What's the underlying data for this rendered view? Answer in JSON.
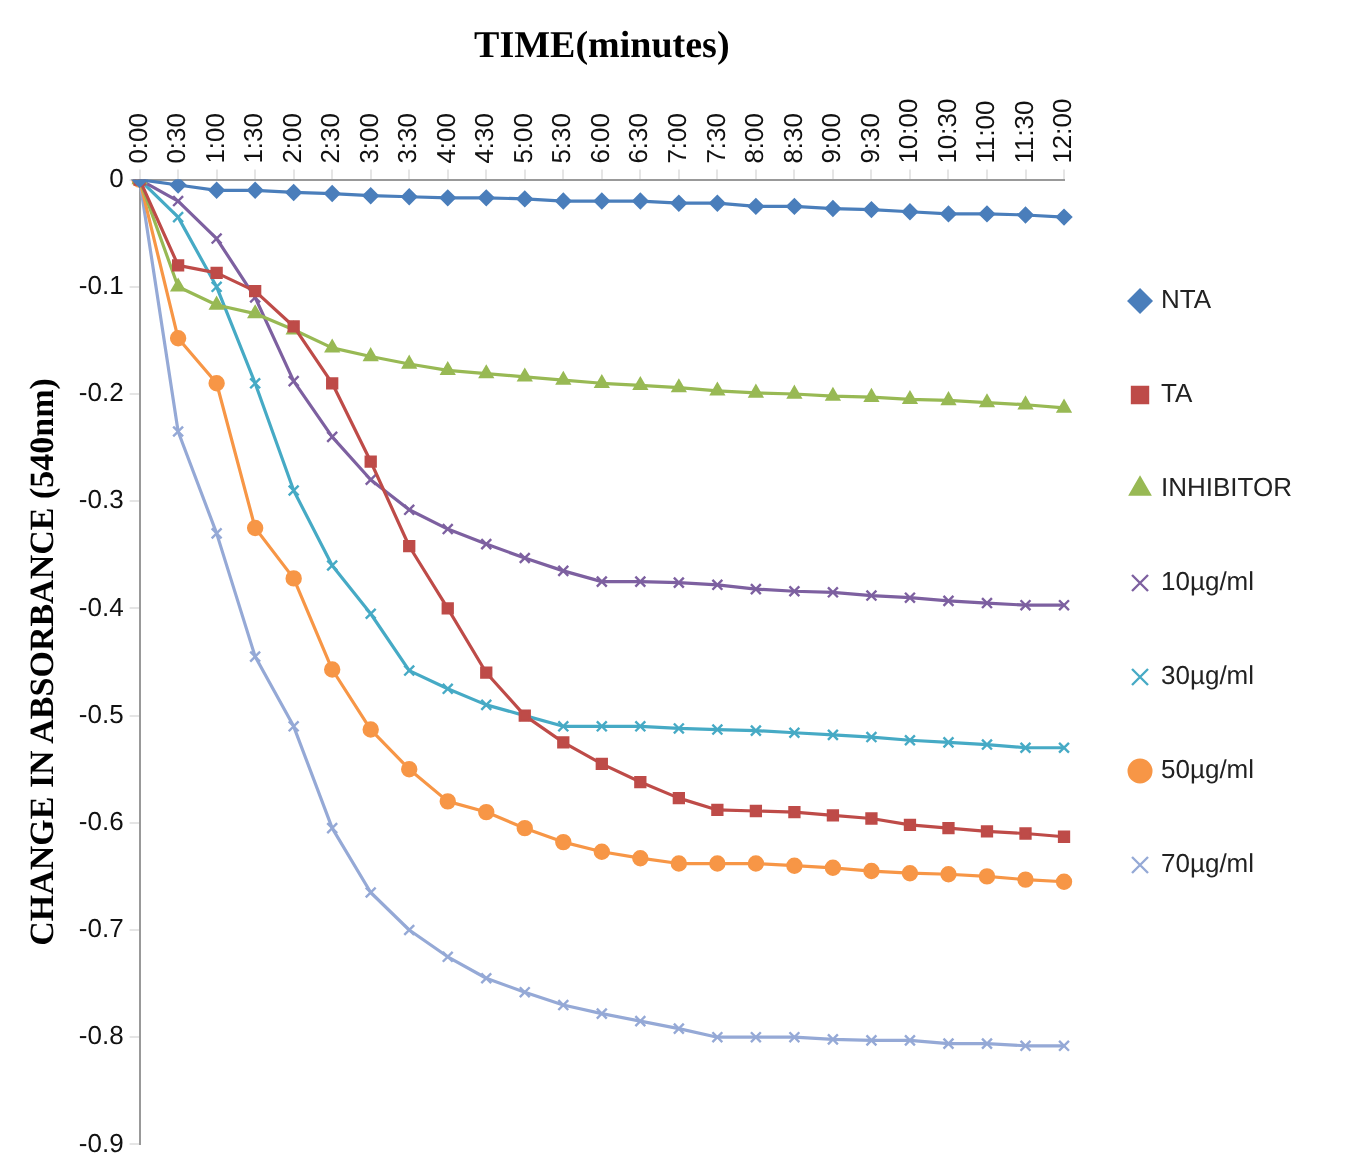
{
  "chart_data": {
    "type": "line",
    "xlabel": "TIME(minutes)",
    "ylabel": "CHANGE IN ABSORBANCE (540nm)",
    "categories": [
      "0:00",
      "0:30",
      "1:00",
      "1:30",
      "2:00",
      "2:30",
      "3:00",
      "3:30",
      "4:00",
      "4:30",
      "5:00",
      "5:30",
      "6:00",
      "6:30",
      "7:00",
      "7:30",
      "8:00",
      "8:30",
      "9:00",
      "9:30",
      "10:00",
      "10:30",
      "11:00",
      "11:30",
      "12:00"
    ],
    "ylim": [
      -0.9,
      0
    ],
    "yticks": [
      0,
      -0.1,
      -0.2,
      -0.3,
      -0.4,
      -0.5,
      -0.6,
      -0.7,
      -0.8,
      -0.9
    ],
    "grid": false,
    "legend": "right",
    "series": [
      {
        "name": "NTA",
        "color": "#4a7ebb",
        "marker": "diamond",
        "values": [
          0,
          -0.005,
          -0.01,
          -0.01,
          -0.012,
          -0.013,
          -0.015,
          -0.016,
          -0.017,
          -0.017,
          -0.018,
          -0.02,
          -0.02,
          -0.02,
          -0.022,
          -0.022,
          -0.025,
          -0.025,
          -0.027,
          -0.028,
          -0.03,
          -0.032,
          -0.032,
          -0.033,
          -0.035
        ]
      },
      {
        "name": "TA",
        "color": "#be4b48",
        "marker": "square",
        "values": [
          0,
          -0.08,
          -0.087,
          -0.104,
          -0.137,
          -0.19,
          -0.263,
          -0.342,
          -0.4,
          -0.46,
          -0.5,
          -0.525,
          -0.545,
          -0.562,
          -0.577,
          -0.588,
          -0.589,
          -0.59,
          -0.593,
          -0.596,
          -0.602,
          -0.605,
          -0.608,
          -0.61,
          -0.613
        ]
      },
      {
        "name": "INHIBITOR",
        "color": "#98b954",
        "marker": "triangle",
        "values": [
          0,
          -0.1,
          -0.117,
          -0.125,
          -0.14,
          -0.157,
          -0.165,
          -0.172,
          -0.178,
          -0.181,
          -0.184,
          -0.187,
          -0.19,
          -0.192,
          -0.194,
          -0.197,
          -0.199,
          -0.2,
          -0.202,
          -0.203,
          -0.205,
          -0.206,
          -0.208,
          -0.21,
          -0.213
        ]
      },
      {
        "name": "10µg/ml",
        "color": "#7d60a0",
        "marker": "cross",
        "values": [
          0,
          -0.02,
          -0.055,
          -0.11,
          -0.188,
          -0.24,
          -0.28,
          -0.308,
          -0.326,
          -0.34,
          -0.353,
          -0.365,
          -0.375,
          -0.375,
          -0.376,
          -0.378,
          -0.382,
          -0.384,
          -0.385,
          -0.388,
          -0.39,
          -0.393,
          -0.395,
          -0.397,
          -0.397
        ]
      },
      {
        "name": "30µg/ml",
        "color": "#46aac5",
        "marker": "cross",
        "values": [
          0,
          -0.035,
          -0.1,
          -0.19,
          -0.29,
          -0.36,
          -0.405,
          -0.458,
          -0.475,
          -0.49,
          -0.5,
          -0.51,
          -0.51,
          -0.51,
          -0.512,
          -0.513,
          -0.514,
          -0.516,
          -0.518,
          -0.52,
          -0.523,
          -0.525,
          -0.527,
          -0.53,
          -0.53
        ]
      },
      {
        "name": "50µg/ml",
        "color": "#f79646",
        "marker": "circle",
        "values": [
          0,
          -0.148,
          -0.19,
          -0.325,
          -0.372,
          -0.457,
          -0.513,
          -0.55,
          -0.58,
          -0.59,
          -0.605,
          -0.618,
          -0.627,
          -0.633,
          -0.638,
          -0.638,
          -0.638,
          -0.64,
          -0.642,
          -0.645,
          -0.647,
          -0.648,
          -0.65,
          -0.653,
          -0.655
        ]
      },
      {
        "name": "70µg/ml",
        "color": "#95a9d6",
        "marker": "cross",
        "values": [
          0,
          -0.235,
          -0.33,
          -0.445,
          -0.51,
          -0.605,
          -0.665,
          -0.7,
          -0.725,
          -0.745,
          -0.758,
          -0.77,
          -0.778,
          -0.785,
          -0.792,
          -0.8,
          -0.8,
          -0.8,
          -0.802,
          -0.803,
          -0.803,
          -0.806,
          -0.806,
          -0.808,
          -0.808
        ]
      }
    ]
  }
}
